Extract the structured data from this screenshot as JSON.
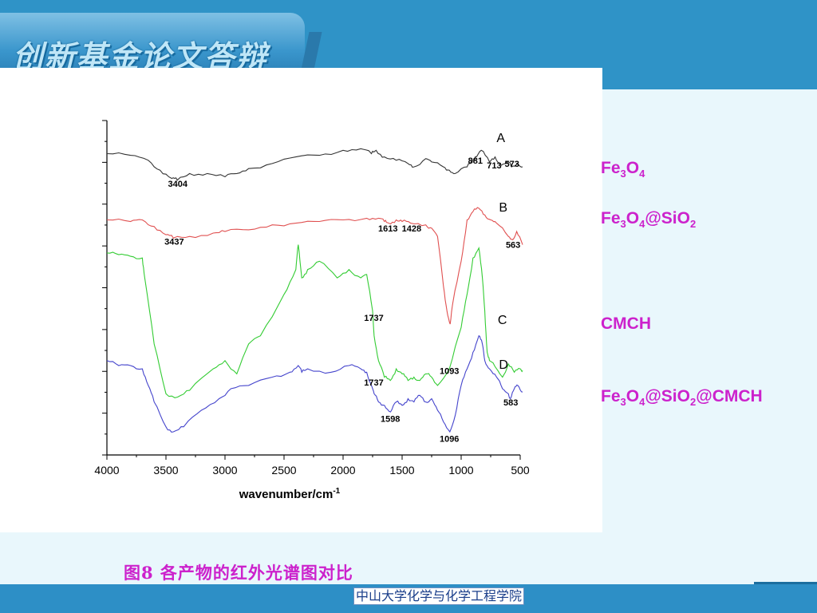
{
  "header": {
    "title": "创新基金论文答辩"
  },
  "caption": "图8 各产物的红外光谱图对比",
  "footer": {
    "text": "中山大学化学与化学工程学院"
  },
  "legend": [
    {
      "prefix": "Fe",
      "sub1": "3",
      "mid": "O",
      "sub2": "4",
      "tail": "",
      "sub3": ""
    },
    {
      "prefix": "Fe",
      "sub1": "3",
      "mid": "O",
      "sub2": "4",
      "tail": "@SiO",
      "sub3": "2"
    },
    {
      "prefix": "CMCH",
      "sub1": "",
      "mid": "",
      "sub2": "",
      "tail": "",
      "sub3": ""
    },
    {
      "prefix": "Fe",
      "sub1": "3",
      "mid": "O",
      "sub2": "4",
      "tail": "@SiO",
      "sub3": "2",
      "tail2": "@CMCH"
    }
  ],
  "colors": {
    "A": "#333333",
    "B": "#e05050",
    "C": "#33cc33",
    "D": "#4444cc",
    "accent": "#cc22cc"
  },
  "chart_data": {
    "type": "line",
    "xlabel": "wavenumber/cm",
    "xlabel_sup": "-1",
    "xlim": [
      4000,
      500
    ],
    "xticks": [
      4000,
      3500,
      3000,
      2500,
      2000,
      1500,
      1000,
      500
    ],
    "yticks_count": 17,
    "series": [
      {
        "name": "A",
        "x": [
          4000,
          3800,
          3650,
          3550,
          3450,
          3404,
          3300,
          3150,
          3000,
          2900,
          2800,
          2600,
          2400,
          2200,
          2000,
          1850,
          1760,
          1720,
          1650,
          1550,
          1450,
          1400,
          1300,
          1250,
          1150,
          1100,
          1050,
          950,
          900,
          881,
          830,
          760,
          713,
          660,
          600,
          573,
          520,
          480
        ],
        "y": [
          0.1,
          0.09,
          0.06,
          0.0,
          -0.05,
          -0.06,
          -0.02,
          -0.02,
          -0.04,
          -0.02,
          0.01,
          0.04,
          0.08,
          0.09,
          0.12,
          0.13,
          0.1,
          0.12,
          0.08,
          0.06,
          0.04,
          0.02,
          0.07,
          0.05,
          0.02,
          0.0,
          -0.02,
          0.02,
          0.06,
          0.08,
          0.12,
          0.05,
          0.08,
          0.03,
          0.05,
          0.02,
          0.04,
          0.02
        ]
      },
      {
        "name": "B",
        "x": [
          4000,
          3800,
          3700,
          3600,
          3500,
          3437,
          3300,
          3100,
          3000,
          2800,
          2600,
          2400,
          2200,
          2000,
          1800,
          1700,
          1650,
          1613,
          1550,
          1500,
          1428,
          1300,
          1250,
          1200,
          1150,
          1120,
          1093,
          1070,
          1000,
          950,
          900,
          850,
          800,
          750,
          700,
          600,
          563,
          530,
          480
        ],
        "y": [
          0.05,
          0.04,
          0.05,
          0.01,
          -0.04,
          -0.06,
          -0.05,
          -0.03,
          -0.02,
          -0.01,
          0.02,
          0.03,
          0.04,
          0.05,
          0.06,
          0.06,
          0.04,
          0.03,
          0.05,
          0.04,
          0.03,
          0.02,
          0.0,
          -0.05,
          -0.35,
          -0.5,
          -0.58,
          -0.45,
          -0.2,
          0.05,
          0.1,
          0.12,
          0.08,
          0.05,
          0.03,
          -0.05,
          -0.07,
          -0.02,
          -0.1
        ]
      },
      {
        "name": "C",
        "x": [
          4000,
          3900,
          3800,
          3700,
          3680,
          3600,
          3500,
          3400,
          3300,
          3100,
          3000,
          2900,
          2800,
          2700,
          2500,
          2400,
          2380,
          2350,
          2300,
          2200,
          2050,
          1950,
          1850,
          1800,
          1750,
          1737,
          1700,
          1650,
          1600,
          1550,
          1500,
          1450,
          1400,
          1350,
          1300,
          1250,
          1200,
          1100,
          1000,
          950,
          900,
          850,
          820,
          800,
          780,
          760,
          700,
          650,
          600,
          550,
          500,
          480
        ],
        "y": [
          0.05,
          0.04,
          0.03,
          0.02,
          -0.1,
          -0.5,
          -0.8,
          -0.82,
          -0.78,
          -0.65,
          -0.6,
          -0.68,
          -0.5,
          -0.45,
          -0.2,
          -0.05,
          0.1,
          -0.1,
          -0.05,
          0.0,
          -0.1,
          -0.05,
          -0.1,
          -0.08,
          -0.3,
          -0.45,
          -0.6,
          -0.7,
          -0.72,
          -0.65,
          -0.68,
          -0.72,
          -0.7,
          -0.72,
          -0.68,
          -0.7,
          -0.75,
          -0.65,
          -0.4,
          -0.2,
          0.02,
          0.08,
          -0.1,
          -0.3,
          -0.55,
          -0.6,
          -0.65,
          -0.7,
          -0.62,
          -0.67,
          -0.65,
          -0.66
        ]
      },
      {
        "name": "D",
        "x": [
          4000,
          3900,
          3800,
          3700,
          3650,
          3600,
          3500,
          3437,
          3350,
          3200,
          3050,
          2950,
          2800,
          2600,
          2450,
          2380,
          2350,
          2300,
          2100,
          1950,
          1850,
          1800,
          1760,
          1737,
          1700,
          1650,
          1598,
          1550,
          1500,
          1450,
          1400,
          1350,
          1300,
          1250,
          1200,
          1150,
          1096,
          1050,
          1000,
          950,
          900,
          850,
          820,
          800,
          760,
          700,
          650,
          600,
          583,
          550,
          520,
          480
        ],
        "y": [
          -0.55,
          -0.58,
          -0.58,
          -0.6,
          -0.7,
          -0.8,
          -0.95,
          -0.98,
          -0.95,
          -0.85,
          -0.78,
          -0.72,
          -0.7,
          -0.65,
          -0.62,
          -0.58,
          -0.62,
          -0.6,
          -0.62,
          -0.58,
          -0.6,
          -0.62,
          -0.7,
          -0.75,
          -0.8,
          -0.82,
          -0.86,
          -0.8,
          -0.82,
          -0.78,
          -0.8,
          -0.76,
          -0.8,
          -0.78,
          -0.85,
          -0.92,
          -0.98,
          -0.88,
          -0.7,
          -0.6,
          -0.5,
          -0.4,
          -0.45,
          -0.55,
          -0.6,
          -0.65,
          -0.72,
          -0.75,
          -0.78,
          -0.72,
          -0.7,
          -0.74
        ]
      }
    ],
    "annotations": [
      {
        "text": "3404",
        "x": 3400,
        "y": -0.1
      },
      {
        "text": "881",
        "x": 880,
        "y": 0.04
      },
      {
        "text": "713",
        "x": 720,
        "y": 0.01
      },
      {
        "text": "573",
        "x": 570,
        "y": 0.02
      },
      {
        "text": "3437",
        "x": 3430,
        "y": -0.1
      },
      {
        "text": "1613",
        "x": 1620,
        "y": -0.02
      },
      {
        "text": "1428",
        "x": 1420,
        "y": -0.02
      },
      {
        "text": "563",
        "x": 560,
        "y": -0.12
      },
      {
        "text": "1093",
        "x": 1100,
        "y": -0.68
      },
      {
        "text": "1737",
        "x": 1740,
        "y": -0.36
      },
      {
        "text": "1737",
        "x": 1740,
        "y": -0.7
      },
      {
        "text": "1598",
        "x": 1600,
        "y": -0.92
      },
      {
        "text": "1096",
        "x": 1100,
        "y": -1.04
      },
      {
        "text": "583",
        "x": 580,
        "y": -0.82
      }
    ],
    "series_labels": [
      {
        "text": "A",
        "x": 700,
        "y": 0.17
      },
      {
        "text": "B",
        "x": 680,
        "y": 0.1
      },
      {
        "text": "C",
        "x": 690,
        "y": -0.38
      },
      {
        "text": "D",
        "x": 680,
        "y": -0.6
      }
    ]
  }
}
